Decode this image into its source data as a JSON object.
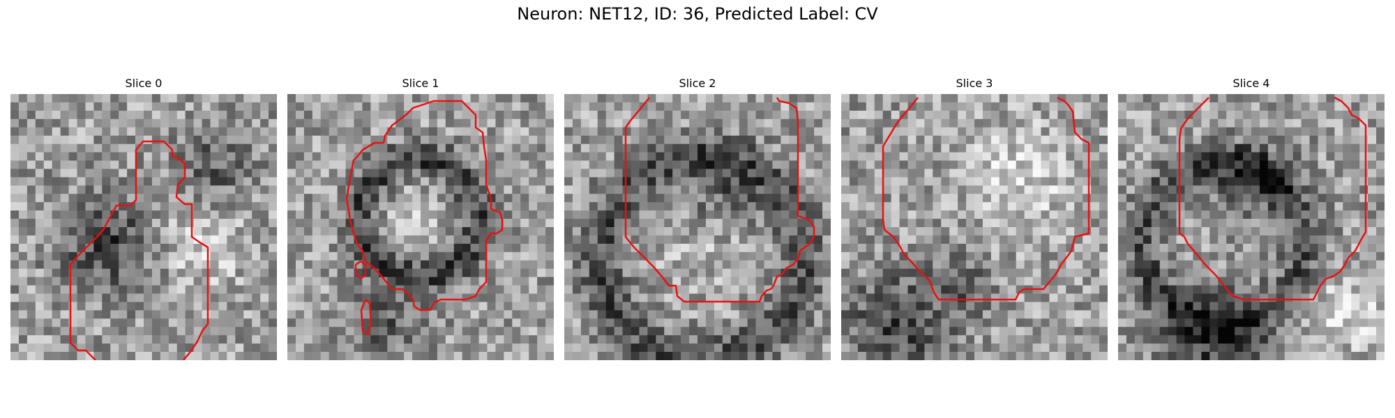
{
  "figure": {
    "suptitle": "Neuron: NET12, ID: 36, Predicted Label: CV",
    "contour_color": "#e81010"
  },
  "panels": [
    {
      "title": "Slice 0",
      "image": "noisy-grayscale-em-patch",
      "contour": "open-contour"
    },
    {
      "title": "Slice 1",
      "image": "noisy-grayscale-em-patch",
      "contour": "closed-contour-with-small-blobs"
    },
    {
      "title": "Slice 2",
      "image": "noisy-grayscale-em-patch",
      "contour": "open-contour"
    },
    {
      "title": "Slice 3",
      "image": "noisy-grayscale-em-patch",
      "contour": "open-contour"
    },
    {
      "title": "Slice 4",
      "image": "noisy-grayscale-em-patch",
      "contour": "open-contour"
    }
  ]
}
